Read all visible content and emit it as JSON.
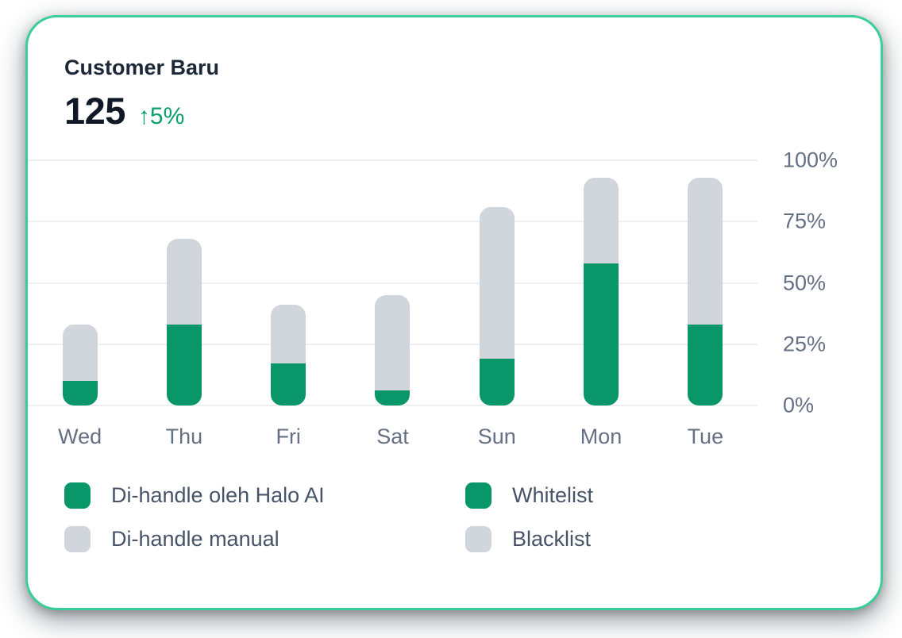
{
  "card": {
    "title": "Customer Baru",
    "stat": {
      "value": "125",
      "delta_arrow": "↑",
      "delta": "5%",
      "delta_color": "#0AA06C"
    },
    "border_color": "#3BCE97"
  },
  "chart_data": {
    "type": "bar",
    "stacked": true,
    "title": "Customer Baru",
    "categories": [
      "Wed",
      "Thu",
      "Fri",
      "Sat",
      "Sun",
      "Mon",
      "Tue"
    ],
    "series": [
      {
        "name": "Di-handle oleh Halo AI",
        "color": "#099669",
        "values": [
          10,
          33,
          17,
          6,
          19,
          58,
          33
        ]
      },
      {
        "name": "Di-handle manual",
        "color": "#D1D5DC",
        "values": [
          23,
          35,
          24,
          39,
          62,
          35,
          60
        ]
      }
    ],
    "y_ticks": [
      "100%",
      "75%",
      "50%",
      "25%",
      "0%"
    ],
    "ylim": [
      0,
      100
    ],
    "unit": "%",
    "grid": true,
    "gridline_color": "#EDEFF3",
    "y_axis_position": "right",
    "legend_position": "bottom"
  },
  "legend": {
    "items": [
      {
        "label": "Di-handle oleh Halo AI",
        "color": "#099669"
      },
      {
        "label": "Whitelist",
        "color": "#099669"
      },
      {
        "label": "Di-handle manual",
        "color": "#D1D5DC"
      },
      {
        "label": "Blacklist",
        "color": "#D1D5DC"
      }
    ]
  }
}
